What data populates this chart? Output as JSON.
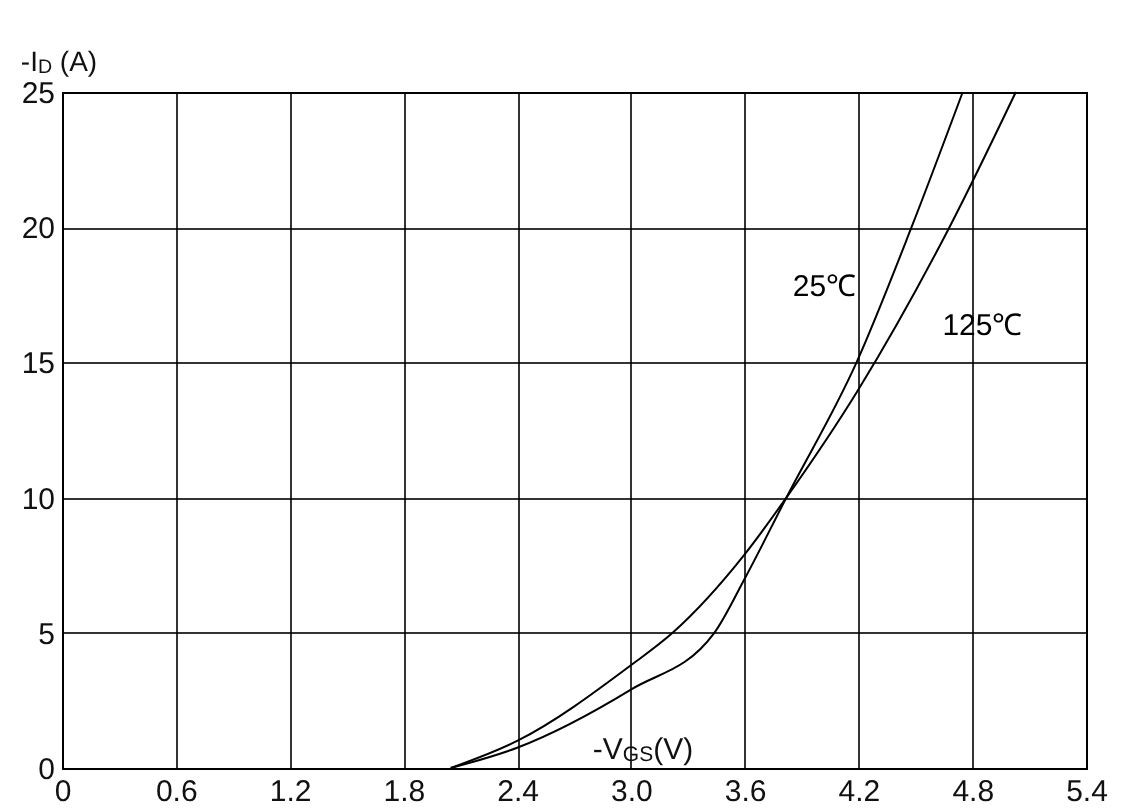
{
  "chart_data": {
    "type": "line",
    "xlabel": "-V$_{GS}$(V)",
    "ylabel": "-I$_{D}$ (A)",
    "xlim": [
      0,
      5.4
    ],
    "xticks": [
      0,
      0.6,
      1.2,
      1.8,
      2.4,
      {
        "value": 3,
        "label": "3.0"
      },
      3.6,
      4.2,
      4.8,
      5.4
    ],
    "ylim": [
      0,
      25
    ],
    "yticks": [
      0,
      5,
      10,
      15,
      20,
      25
    ],
    "grid": true,
    "marker": "none",
    "line_style": "solid",
    "series": [
      {
        "name": "25℃",
        "color": "#000000",
        "x": [
          2.05,
          2.4,
          3.0,
          3.44,
          3.6,
          3.82,
          4.19,
          4.48,
          4.75
        ],
        "values": [
          0,
          0.75,
          2.9,
          5,
          7.0,
          10,
          15,
          20,
          25
        ]
      },
      {
        "name": "125℃",
        "color": "#000000",
        "x": [
          2.05,
          2.4,
          3.0,
          3.22,
          3.6,
          3.82,
          4.2,
          4.68,
          5.03
        ],
        "values": [
          0,
          1.0,
          3.8,
          5,
          7.9,
          10,
          14.0,
          20,
          25
        ]
      }
    ]
  }
}
